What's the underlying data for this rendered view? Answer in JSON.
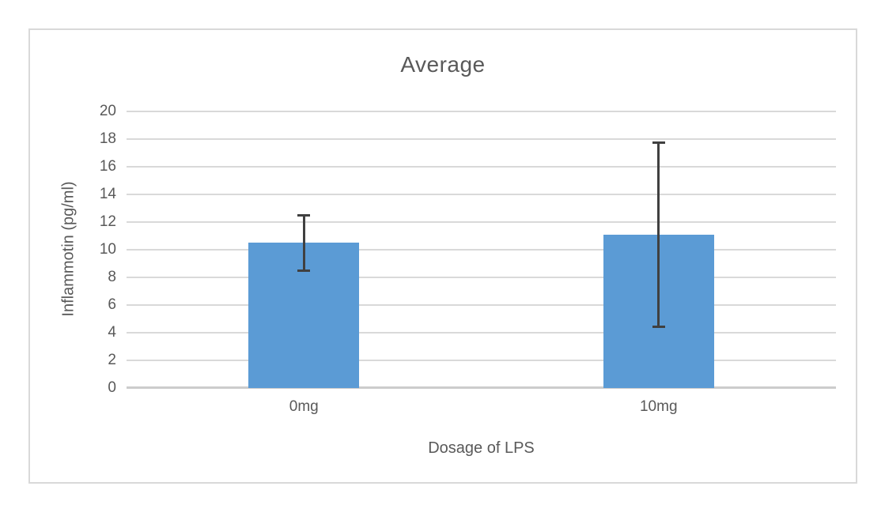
{
  "chart_data": {
    "type": "bar",
    "title": "Average",
    "xlabel": "Dosage of LPS",
    "ylabel": "Inflammotin (pg/ml)",
    "categories": [
      "0mg",
      "10mg"
    ],
    "series": [
      {
        "name": "Average",
        "values": [
          10.5,
          11.1
        ],
        "error_bars": [
          2.0,
          6.65
        ]
      }
    ],
    "ylim": [
      0,
      20
    ],
    "ytick_step": 2,
    "ytick_labels": [
      "0",
      "2",
      "4",
      "6",
      "8",
      "10",
      "12",
      "14",
      "16",
      "18",
      "20"
    ],
    "grid": true,
    "legend": false,
    "bar_color": "#5B9BD5",
    "error_bar_color": "#404040",
    "gridline_color": "#d9d9d9",
    "axis_text_color": "#595959"
  }
}
